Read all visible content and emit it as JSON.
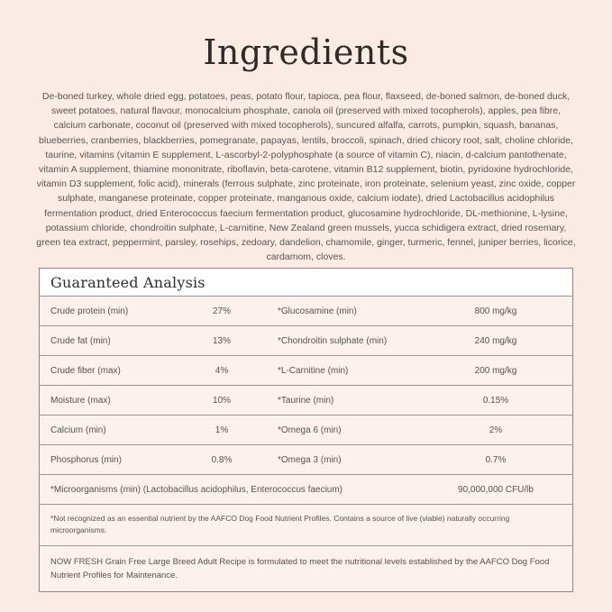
{
  "page": {
    "title": "Ingredients",
    "ingredients_text": "De-boned turkey, whole dried egg, potatoes, peas, potato flour, tapioca, pea flour, flaxseed, de-boned salmon, de-boned duck, sweet potatoes, natural flavour, monocalcium phosphate, canola oil (preserved with mixed tocopherols), apples, pea fibre, calcium carbonate, coconut oil (preserved with mixed tocopherols), suncured alfalfa, carrots, pumpkin, squash, bananas, blueberries, cranberries, blackberries, pomegranate, papayas, lentils, broccoli, spinach, dried chicory root, salt, choline chloride, taurine, vitamins (vitamin E supplement, L-ascorbyl-2-polyphosphate (a source of vitamin C), niacin, d-calcium pantothenate, vitamin A supplement, thiamine mononitrate, riboflavin, beta-carotene, vitamin B12 supplement, biotin, pyridoxine hydrochloride, vitamin D3 supplement, folic acid), minerals (ferrous sulphate, zinc proteinate, iron proteinate, selenium yeast, zinc oxide, copper sulphate, manganese proteinate, copper proteinate, manganous oxide, calcium iodate), dried Lactobacillus acidophilus fermentation product, dried Enterococcus faecium fermentation product, glucosamine hydrochloride, DL-methionine, L-lysine, potassium chloride, chondroitin sulphate, L-carnitine, New Zealand green mussels, yucca schidigera extract, dried rosemary, green tea extract, peppermint, parsley, rosehips, zedoary, dandelion, chamomile, ginger, turmeric, fennel, juniper berries, licorice, cardamom, cloves."
  },
  "analysis": {
    "heading": "Guaranteed Analysis",
    "rows": [
      {
        "label1": "Crude protein (min)",
        "value1": "27%",
        "label2": "*Glucosamine (min)",
        "value2": "800 mg/kg"
      },
      {
        "label1": "Crude fat (min)",
        "value1": "13%",
        "label2": "*Chondroitin sulphate (min)",
        "value2": "240 mg/kg"
      },
      {
        "label1": "Crude fiber (max)",
        "value1": "4%",
        "label2": "*L-Carnitine (min)",
        "value2": "200 mg/kg"
      },
      {
        "label1": "Moisture (max)",
        "value1": "10%",
        "label2": "*Taurine (min)",
        "value2": "0.15%"
      },
      {
        "label1": "Calcium (min)",
        "value1": "1%",
        "label2": "*Omega 6 (min)",
        "value2": "2%"
      },
      {
        "label1": "Phosphorus (min)",
        "value1": "0.8%",
        "label2": "*Omega 3 (min)",
        "value2": "0.7%"
      }
    ],
    "microorganisms": {
      "label": "*Microorganisms (min) (Lactobacillus acidophilus, Enterococcus faecium)",
      "value": "90,000,000 CFU/lb"
    },
    "footnote": "*Not recognized as an essential nutrient by the AAFCO Dog Food Nutrient Profiles. Contains a source of live (viable) naturally occurring microorganisms.",
    "formulation_statement": "NOW FRESH Grain Free Large Breed Adult Recipe is formulated to meet the nutritional levels established by the AAFCO Dog Food Nutrient Profiles for Maintenance."
  },
  "colors": {
    "page_background": "#faebe5",
    "table_row_background": "#fcf1ec",
    "table_header_background": "#ffffff",
    "table_border": "#8a8684",
    "row_divider": "#9c9794",
    "heading_text": "#2e2b29",
    "body_text": "#57524f"
  }
}
